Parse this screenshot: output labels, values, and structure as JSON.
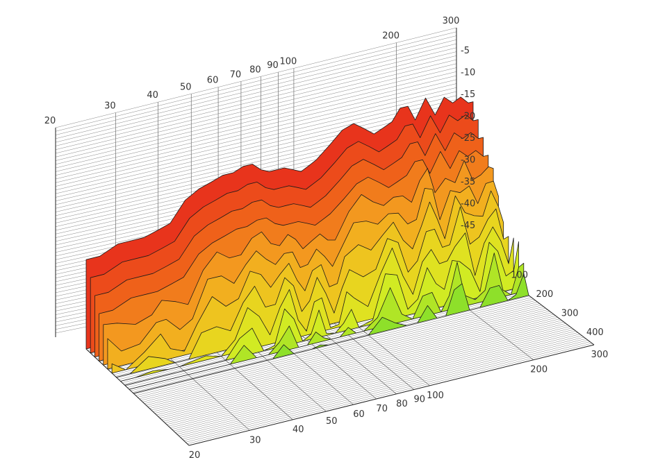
{
  "chart_data": {
    "type": "waterfall-3d",
    "title": "",
    "xlabel": "",
    "ylabel": "",
    "zlabel": "",
    "x_scale": "log",
    "xlim": [
      20,
      300
    ],
    "zlim": [
      -45,
      0
    ],
    "x_ticks_back_wall": [
      "20",
      "30",
      "40",
      "50",
      "60",
      "70",
      "80",
      "90",
      "100",
      "200",
      "300"
    ],
    "x_ticks_floor": [
      "20",
      "30",
      "40",
      "50",
      "60",
      "70",
      "80",
      "90",
      "100",
      "200",
      "300"
    ],
    "z_ticks": [
      "-5",
      "-10",
      "-15",
      "-20",
      "-25",
      "-30",
      "-35",
      "-40",
      "-45"
    ],
    "y_ticks": [
      "100",
      "200",
      "300",
      "400"
    ],
    "y_lim": [
      0,
      480
    ],
    "slice_count": 12,
    "color_scale": [
      "#e8341c",
      "#f0661a",
      "#f4a320",
      "#ecd01e",
      "#d8ec22",
      "#8ee02a"
    ],
    "frequencies": [
      20,
      22,
      25,
      28,
      30,
      33,
      36,
      40,
      44,
      48,
      52,
      56,
      60,
      64,
      68,
      72,
      76,
      80,
      85,
      90,
      95,
      100,
      110,
      120,
      130,
      140,
      150,
      160,
      170,
      180,
      190,
      200,
      215,
      230,
      245,
      260,
      275,
      290,
      300
    ],
    "front_response_db": [
      -22,
      -22,
      -20,
      -20,
      -20,
      -19,
      -18,
      -13,
      -11,
      -10,
      -9,
      -9,
      -8,
      -8,
      -10,
      -11,
      -11,
      -11,
      -12,
      -13,
      -12,
      -11,
      -8,
      -5,
      -4,
      -6,
      -8,
      -7,
      -6,
      -3,
      -3,
      -7,
      -2,
      -7,
      -3,
      -5,
      -4,
      -6,
      -6
    ]
  }
}
